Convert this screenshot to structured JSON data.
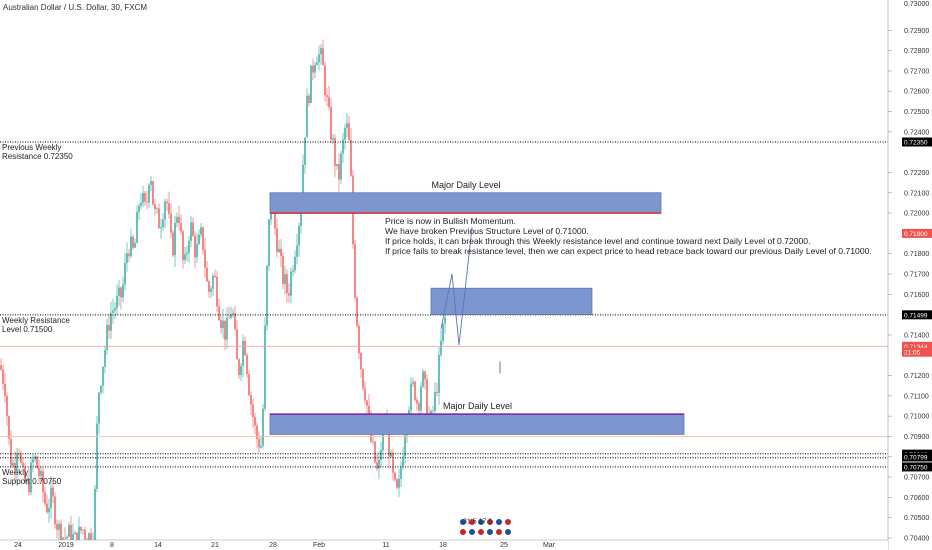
{
  "chart_data": {
    "type": "candlestick",
    "title": "Australian Dollar / U.S. Dollar, 30, FXCM",
    "ylim": [
      0.704,
      0.73
    ],
    "xlim": [
      0,
      932
    ],
    "y_ticks": [
      0.729,
      0.728,
      0.727,
      0.726,
      0.725,
      0.724,
      0.722,
      0.721,
      0.72,
      0.718,
      0.717,
      0.716,
      0.714,
      0.712,
      0.711,
      0.71,
      0.709,
      0.708,
      0.707,
      0.706,
      0.705,
      0.704
    ],
    "y_tick_labels": [
      "0.72900",
      "0.72800",
      "0.72700",
      "0.72600",
      "0.72500",
      "0.72400",
      "0.72200",
      "0.72100",
      "0.72000",
      "0.71800",
      "0.71700",
      "0.71600",
      "0.71400",
      "0.71200",
      "0.71100",
      "0.71000",
      "0.70900",
      "0.70800",
      "0.70700",
      "0.70600",
      "0.70500",
      "0.70400"
    ],
    "top_tick_label": "0.73000",
    "x_labels": [
      {
        "t": "24",
        "x": 18
      },
      {
        "t": "2019",
        "x": 66
      },
      {
        "t": "8",
        "x": 112
      },
      {
        "t": "14",
        "x": 158
      },
      {
        "t": "21",
        "x": 215
      },
      {
        "t": "28",
        "x": 273
      },
      {
        "t": "Feb",
        "x": 319
      },
      {
        "t": "11",
        "x": 386
      },
      {
        "t": "18",
        "x": 443
      },
      {
        "t": "25",
        "x": 504
      },
      {
        "t": "Mar",
        "x": 549
      }
    ],
    "price_path": [
      [
        0,
        0.7125
      ],
      [
        5,
        0.7115
      ],
      [
        10,
        0.708
      ],
      [
        14,
        0.7075
      ],
      [
        18,
        0.709
      ],
      [
        22,
        0.707
      ],
      [
        28,
        0.7065
      ],
      [
        34,
        0.708
      ],
      [
        40,
        0.707
      ],
      [
        46,
        0.7055
      ],
      [
        52,
        0.706
      ],
      [
        58,
        0.7045
      ],
      [
        64,
        0.704
      ],
      [
        70,
        0.7042
      ],
      [
        76,
        0.7038
      ],
      [
        82,
        0.7045
      ],
      [
        88,
        0.704
      ],
      [
        94,
        0.7045
      ],
      [
        98,
        0.711
      ],
      [
        104,
        0.713
      ],
      [
        110,
        0.715
      ],
      [
        116,
        0.7155
      ],
      [
        122,
        0.716
      ],
      [
        128,
        0.7185
      ],
      [
        134,
        0.718
      ],
      [
        140,
        0.721
      ],
      [
        146,
        0.72
      ],
      [
        150,
        0.7225
      ],
      [
        154,
        0.72
      ],
      [
        160,
        0.7195
      ],
      [
        166,
        0.721
      ],
      [
        172,
        0.718
      ],
      [
        178,
        0.7205
      ],
      [
        184,
        0.717
      ],
      [
        190,
        0.7195
      ],
      [
        196,
        0.718
      ],
      [
        202,
        0.719
      ],
      [
        208,
        0.716
      ],
      [
        214,
        0.717
      ],
      [
        220,
        0.715
      ],
      [
        226,
        0.714
      ],
      [
        232,
        0.7155
      ],
      [
        238,
        0.712
      ],
      [
        244,
        0.714
      ],
      [
        250,
        0.711
      ],
      [
        256,
        0.709
      ],
      [
        262,
        0.7085
      ],
      [
        266,
        0.716
      ],
      [
        270,
        0.7205
      ],
      [
        276,
        0.719
      ],
      [
        282,
        0.717
      ],
      [
        288,
        0.716
      ],
      [
        294,
        0.718
      ],
      [
        300,
        0.72
      ],
      [
        306,
        0.725
      ],
      [
        312,
        0.727
      ],
      [
        316,
        0.728
      ],
      [
        322,
        0.7275
      ],
      [
        328,
        0.725
      ],
      [
        334,
        0.723
      ],
      [
        338,
        0.7215
      ],
      [
        342,
        0.723
      ],
      [
        346,
        0.7245
      ],
      [
        350,
        0.723
      ],
      [
        354,
        0.717
      ],
      [
        358,
        0.714
      ],
      [
        362,
        0.712
      ],
      [
        366,
        0.711
      ],
      [
        370,
        0.709
      ],
      [
        374,
        0.708
      ],
      [
        378,
        0.707
      ],
      [
        382,
        0.709
      ],
      [
        386,
        0.71
      ],
      [
        390,
        0.708
      ],
      [
        394,
        0.7065
      ],
      [
        398,
        0.706
      ],
      [
        402,
        0.708
      ],
      [
        406,
        0.71
      ],
      [
        410,
        0.711
      ],
      [
        414,
        0.7115
      ],
      [
        418,
        0.7105
      ],
      [
        422,
        0.712
      ],
      [
        426,
        0.711
      ],
      [
        430,
        0.7095
      ],
      [
        434,
        0.7105
      ],
      [
        438,
        0.712
      ],
      [
        442,
        0.714
      ],
      [
        446,
        0.715
      ]
    ],
    "levels": [
      {
        "name": "previous-weekly-resistance",
        "label": "Previous Weekly\nResistance 0.72350",
        "value": 0.7235,
        "style": "dotted",
        "color": "#000000",
        "badge": "0.72350",
        "badge_color": "#000000"
      },
      {
        "name": "weekly-resistance",
        "label": "Weekly Resistance\nLevel 0.71500",
        "value": 0.71499,
        "style": "dotted",
        "color": "#000000",
        "badge": "0.71499",
        "badge_color": "#000000"
      },
      {
        "name": "weekly-support-a",
        "label": "",
        "value": 0.70815,
        "style": "dotted",
        "color": "#000000",
        "badge": "",
        "badge_color": ""
      },
      {
        "name": "weekly-support-b",
        "label": "",
        "value": 0.70795,
        "style": "dotted",
        "color": "#000000",
        "badge": "",
        "badge_color": ""
      },
      {
        "name": "weekly-support",
        "label": "Weekly\nSupport 0.70750",
        "value": 0.7075,
        "style": "dotted",
        "color": "#000000",
        "badge": "",
        "badge_color": ""
      },
      {
        "name": "current-price",
        "label": "",
        "value": 0.71344,
        "style": "solid",
        "color": "#f4a99a",
        "badge": "0.71344",
        "badge_color": "#ef5350"
      },
      {
        "name": "orange-level",
        "label": "",
        "value": 0.709,
        "style": "solid",
        "color": "#f2c3a3",
        "badge": "",
        "badge_color": ""
      }
    ],
    "price_badges": [
      {
        "text": "0.71900",
        "value": 0.719,
        "color": "#ef5350"
      },
      {
        "text": "0.70813",
        "value": 0.70813,
        "color": "#000000"
      },
      {
        "text": "0.70799",
        "value": 0.70799,
        "color": "#000000"
      },
      {
        "text": "0.70750",
        "value": 0.7075,
        "color": "#000000"
      },
      {
        "text": "21:05",
        "value": 0.71315,
        "color": "#ef5350"
      }
    ],
    "zones": [
      {
        "name": "major-daily-level-upper",
        "label": "Major Daily Level",
        "x0": 270,
        "x1": 661,
        "y_top": 0.721,
        "y_bottom": 0.72,
        "edge": "bottom",
        "edge_color": "#d32f2f"
      },
      {
        "name": "target-zone",
        "label": "",
        "x0": 431,
        "x1": 592,
        "y_top": 0.7163,
        "y_bottom": 0.715,
        "edge": "",
        "edge_color": ""
      },
      {
        "name": "major-daily-level-lower",
        "label": "Major Daily Level",
        "x0": 270,
        "x1": 684,
        "y_top": 0.7101,
        "y_bottom": 0.7091,
        "edge": "top",
        "edge_color": "#7b1fa2"
      }
    ],
    "projection": [
      [
        441,
        0.7143
      ],
      [
        452,
        0.717
      ],
      [
        459,
        0.7135
      ],
      [
        472,
        0.7193
      ]
    ],
    "annotation": [
      "Price is now in Bullish Momentum.",
      "We have broken Previous Structure Level of 0.71000.",
      "If price holds, it can break through this Weekly resistance level and continue toward next Daily Level of 0.72000.",
      "If price fails to break resistance level, then we can expect price to head retrace back toward our previous Daily Level of 0.71000."
    ],
    "events": "31 5 17 6",
    "colors": {
      "up": "#26a69a",
      "down": "#ef5350",
      "zone": "#7e96cf",
      "zone_stroke": "#5b73b5"
    }
  }
}
